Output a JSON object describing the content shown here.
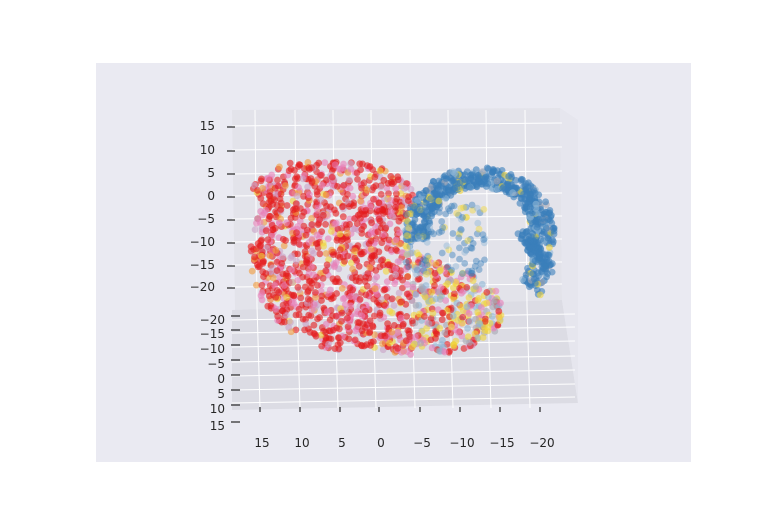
{
  "chart_data": {
    "type": "scatter",
    "projection": "3d",
    "title": "",
    "xlabel": "",
    "ylabel": "",
    "zlabel": "",
    "grid": true,
    "legend": "none",
    "x_ticks": [
      "15",
      "10",
      "5",
      "0",
      "−5",
      "−10",
      "−15",
      "−20"
    ],
    "y_ticks": [
      "−20",
      "−15",
      "−10",
      "−5",
      "0",
      "5",
      "10",
      "15"
    ],
    "z_ticks": [
      "15",
      "10",
      "5",
      "0",
      "−5",
      "−10",
      "−15",
      "−20"
    ],
    "xlim": [
      -22,
      18
    ],
    "ylim": [
      -22,
      16
    ],
    "zlim": [
      -22,
      16
    ],
    "colors": {
      "red": "#e41a1c",
      "pink": "#e87fb8",
      "lilac": "#c9a1c7",
      "yellow": "#f2d63a",
      "orange": "#f29b3a",
      "grey": "#a7a7b3",
      "blue": "#3a7fba",
      "lightblue": "#8db6d6"
    },
    "series": [
      {
        "color_key": "red",
        "cluster": "left mass",
        "approx_share": 0.45
      },
      {
        "color_key": "pink",
        "cluster": "left mass",
        "approx_share": 0.18
      },
      {
        "color_key": "yellow",
        "cluster": "lower-right lobe",
        "approx_share": 0.05
      },
      {
        "color_key": "blue",
        "cluster": "upper-right arc",
        "approx_share": 0.22
      }
    ]
  }
}
